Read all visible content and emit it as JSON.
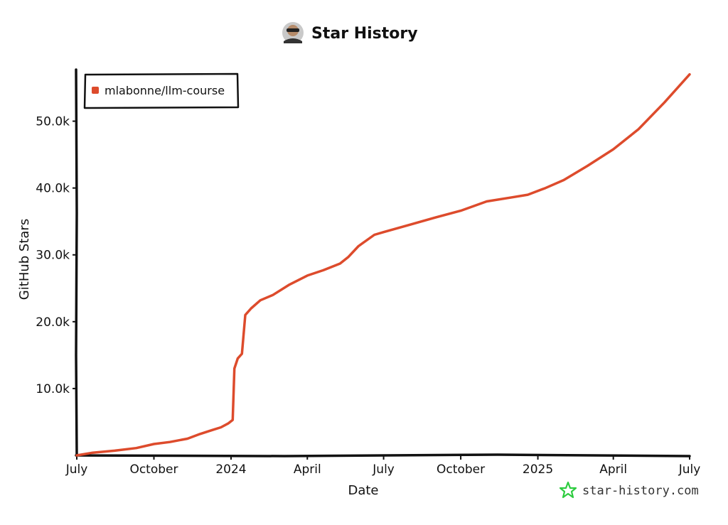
{
  "chart_data": {
    "type": "line",
    "title": "Star History",
    "xlabel": "Date",
    "ylabel": "GitHub Stars",
    "x_ticks": [
      "July",
      "October",
      "2024",
      "April",
      "July",
      "October",
      "2025",
      "April",
      "July"
    ],
    "x_tick_dates": [
      "2023-07-01",
      "2023-10-01",
      "2024-01-01",
      "2024-04-01",
      "2024-07-01",
      "2024-10-01",
      "2025-01-01",
      "2025-04-01",
      "2025-07-01"
    ],
    "y_ticks": [
      "10.0k",
      "20.0k",
      "30.0k",
      "40.0k",
      "50.0k"
    ],
    "y_tick_values": [
      10000,
      20000,
      30000,
      40000,
      50000
    ],
    "xlim": [
      "2023-07-01",
      "2025-07-01"
    ],
    "ylim": [
      0,
      57500
    ],
    "grid": false,
    "legend_position": "top-left",
    "series": [
      {
        "name": "mlabonne/llm-course",
        "color": "#dd4b2c",
        "points": [
          [
            "2023-07-01",
            0
          ],
          [
            "2023-07-20",
            400
          ],
          [
            "2023-08-15",
            700
          ],
          [
            "2023-09-10",
            1100
          ],
          [
            "2023-10-01",
            1700
          ],
          [
            "2023-10-20",
            2000
          ],
          [
            "2023-11-10",
            2500
          ],
          [
            "2023-11-25",
            3200
          ],
          [
            "2023-12-10",
            3800
          ],
          [
            "2023-12-20",
            4200
          ],
          [
            "2023-12-29",
            4800
          ],
          [
            "2024-01-03",
            5300
          ],
          [
            "2024-01-05",
            13000
          ],
          [
            "2024-01-09",
            14500
          ],
          [
            "2024-01-14",
            15200
          ],
          [
            "2024-01-18",
            21000
          ],
          [
            "2024-01-25",
            22000
          ],
          [
            "2024-02-05",
            23200
          ],
          [
            "2024-02-20",
            24000
          ],
          [
            "2024-03-10",
            25500
          ],
          [
            "2024-04-01",
            26900
          ],
          [
            "2024-04-20",
            27700
          ],
          [
            "2024-05-10",
            28700
          ],
          [
            "2024-05-20",
            29700
          ],
          [
            "2024-06-01",
            31300
          ],
          [
            "2024-06-20",
            33000
          ],
          [
            "2024-07-01",
            33400
          ],
          [
            "2024-08-01",
            34500
          ],
          [
            "2024-09-01",
            35600
          ],
          [
            "2024-10-01",
            36600
          ],
          [
            "2024-11-01",
            38000
          ],
          [
            "2024-12-01",
            38600
          ],
          [
            "2024-12-20",
            39000
          ],
          [
            "2025-01-10",
            40000
          ],
          [
            "2025-02-01",
            41200
          ],
          [
            "2025-03-01",
            43300
          ],
          [
            "2025-04-01",
            45800
          ],
          [
            "2025-05-01",
            48800
          ],
          [
            "2025-06-01",
            52800
          ],
          [
            "2025-07-01",
            57000
          ]
        ]
      }
    ]
  },
  "watermark": {
    "text": "star-history.com",
    "icon": "star-icon",
    "color": "#2ecc40"
  },
  "title_avatar": {
    "icon": "avatar-icon"
  }
}
